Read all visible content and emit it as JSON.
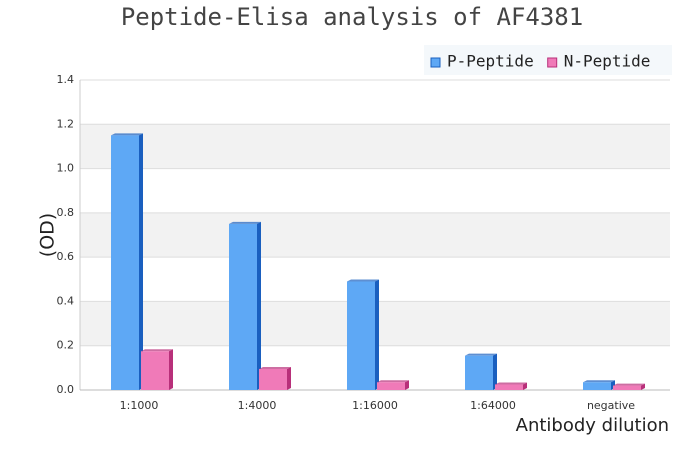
{
  "chart_data": {
    "type": "bar3d",
    "title": "Peptide-Elisa analysis of AF4381",
    "x_label": "Antibody dilution",
    "y_label": "(OD)",
    "categories": [
      "1:1000",
      "1:4000",
      "1:16000",
      "1:64000",
      "negative"
    ],
    "series": [
      {
        "name": "P-Peptide",
        "color": "#5ea8f5",
        "side_color": "#1a5fbf",
        "values": [
          1.15,
          0.75,
          0.49,
          0.155,
          0.035
        ]
      },
      {
        "name": "N-Peptide",
        "color": "#f07ab8",
        "side_color": "#b8307a",
        "values": [
          0.175,
          0.095,
          0.035,
          0.025,
          0.02
        ]
      }
    ],
    "ylim": [
      0,
      1.4
    ],
    "yticks": [
      {
        "value": 0,
        "label": "0.0"
      },
      {
        "value": 0.2,
        "label": "0.2"
      },
      {
        "value": 0.4,
        "label": "0.4"
      },
      {
        "value": 0.6,
        "label": "0.6"
      },
      {
        "value": 0.8,
        "label": "0.8"
      },
      {
        "value": 1,
        "label": "1.0"
      },
      {
        "value": 1.2,
        "label": "1.2"
      },
      {
        "value": 1.4,
        "label": "1.4"
      }
    ],
    "grid": true,
    "legend": "top-right"
  }
}
